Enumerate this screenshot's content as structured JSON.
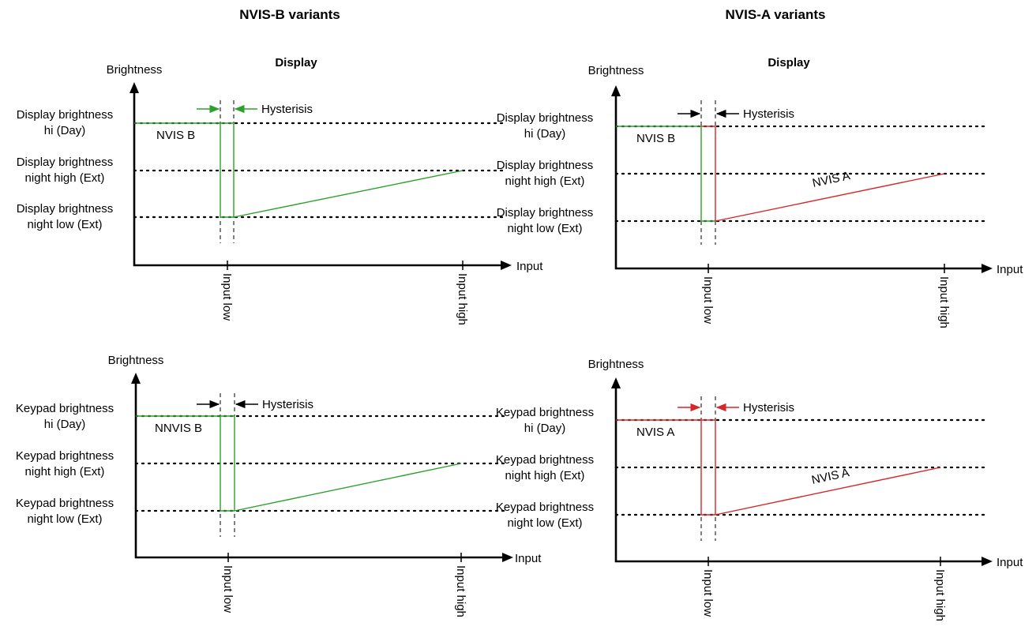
{
  "headers": {
    "left": "NVIS-B variants",
    "right": "NVIS-A variants"
  },
  "colors": {
    "green": "#2ca02c",
    "red": "#d62728",
    "black": "#000000"
  },
  "panels": [
    {
      "id": "b-display",
      "subtitle": "Display",
      "y_axis": "Brightness",
      "x_axis": "Input",
      "levels": [
        "Display brightness\nhi (Day)",
        "Display brightness\nnight high (Ext)",
        "Display brightness\nnight low (Ext)"
      ],
      "hysteresis": "Hysterisis",
      "hysteresis_color": "green",
      "dashes_color": "green",
      "left_label": "NVIS B",
      "left_color": "green",
      "right_color": "green",
      "ramp_color": "green",
      "ramp_label": "",
      "ticks": [
        "Input low",
        "Input high"
      ]
    },
    {
      "id": "a-display",
      "subtitle": "Display",
      "y_axis": "Brightness",
      "x_axis": "Input",
      "levels": [
        "Display brightness\nhi (Day)",
        "Display brightness\nnight high (Ext)",
        "Display brightness\nnight low (Ext)"
      ],
      "hysteresis": "Hysterisis",
      "hysteresis_color": "black",
      "dashes_color": "black",
      "left_label": "NVIS B",
      "left_color": "green",
      "right_color": "red",
      "ramp_color": "red",
      "ramp_label": "NVIS A",
      "ticks": [
        "Input low",
        "Input high"
      ]
    },
    {
      "id": "b-keypad",
      "subtitle": "",
      "y_axis": "Brightness",
      "x_axis": "Input",
      "levels": [
        "Keypad brightness\nhi (Day)",
        "Keypad brightness\nnight high (Ext)",
        "Keypad brightness\nnight low (Ext)"
      ],
      "hysteresis": "Hysterisis",
      "hysteresis_color": "black",
      "dashes_color": "black",
      "left_label": "NNVIS B",
      "left_color": "green",
      "right_color": "green",
      "ramp_color": "green",
      "ramp_label": "",
      "ticks": [
        "Input low",
        "Input high"
      ]
    },
    {
      "id": "a-keypad",
      "subtitle": "",
      "y_axis": "Brightness",
      "x_axis": "Input",
      "levels": [
        "Keypad brightness\nhi (Day)",
        "Keypad brightness\nnight high (Ext)",
        "Keypad brightness\nnight low (Ext)"
      ],
      "hysteresis": "Hysterisis",
      "hysteresis_color": "red",
      "dashes_color": "black",
      "left_label": "NVIS A",
      "left_color": "red",
      "right_color": "red",
      "ramp_color": "red",
      "ramp_label": "NVIS A",
      "ticks": [
        "Input low",
        "Input high"
      ]
    }
  ]
}
